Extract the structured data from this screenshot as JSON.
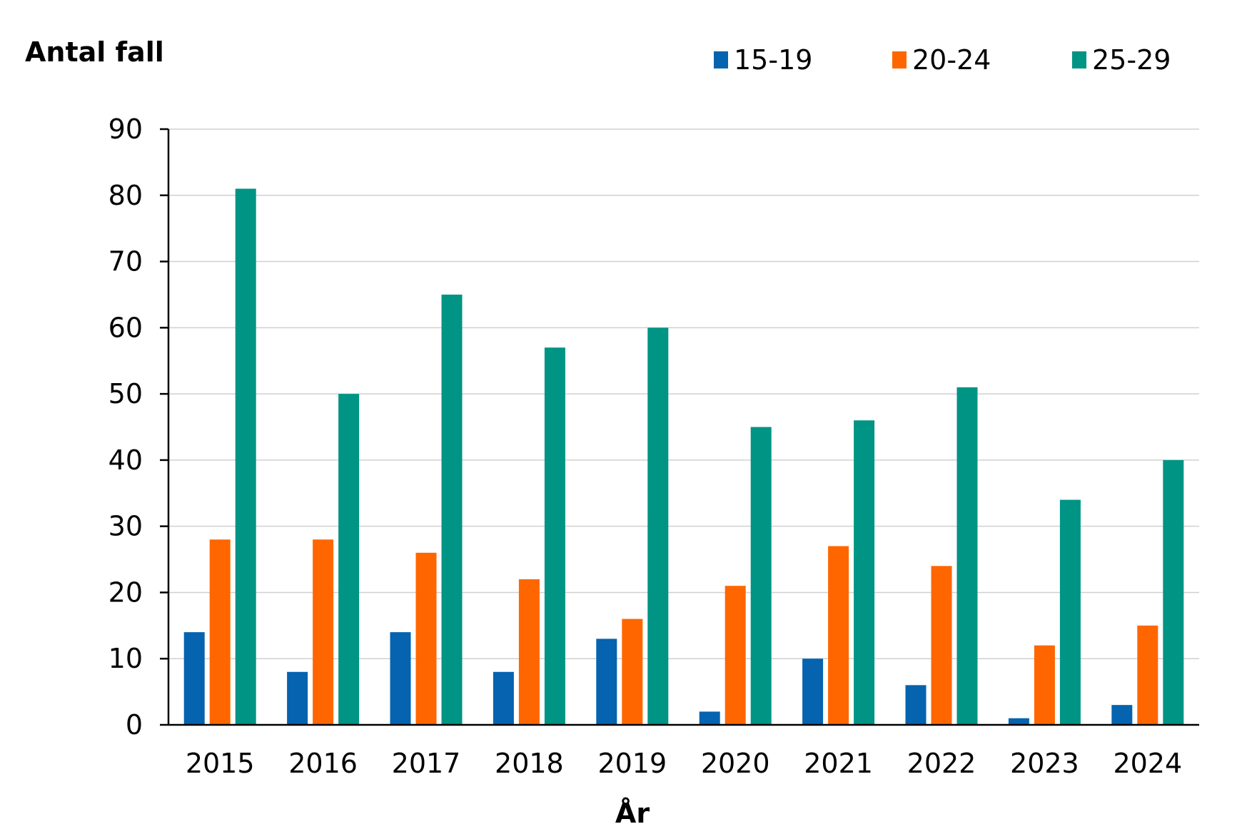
{
  "chart_data": {
    "type": "bar",
    "title": "",
    "ylabel": "Antal fall",
    "xlabel": "År",
    "ylim": [
      0,
      90
    ],
    "yticks": [
      0,
      10,
      20,
      30,
      40,
      50,
      60,
      70,
      80,
      90
    ],
    "grid": true,
    "legend_position": "top-right",
    "categories": [
      "2015",
      "2016",
      "2017",
      "2018",
      "2019",
      "2020",
      "2021",
      "2022",
      "2023",
      "2024"
    ],
    "series": [
      {
        "name": "15-19",
        "color": "#0563af",
        "values": [
          14,
          8,
          14,
          8,
          13,
          2,
          10,
          6,
          1,
          3
        ]
      },
      {
        "name": "20-24",
        "color": "#ff6600",
        "values": [
          28,
          28,
          26,
          22,
          16,
          21,
          27,
          24,
          12,
          15
        ]
      },
      {
        "name": "25-29",
        "color": "#009485",
        "values": [
          81,
          50,
          65,
          57,
          60,
          45,
          46,
          51,
          34,
          40
        ]
      }
    ]
  }
}
